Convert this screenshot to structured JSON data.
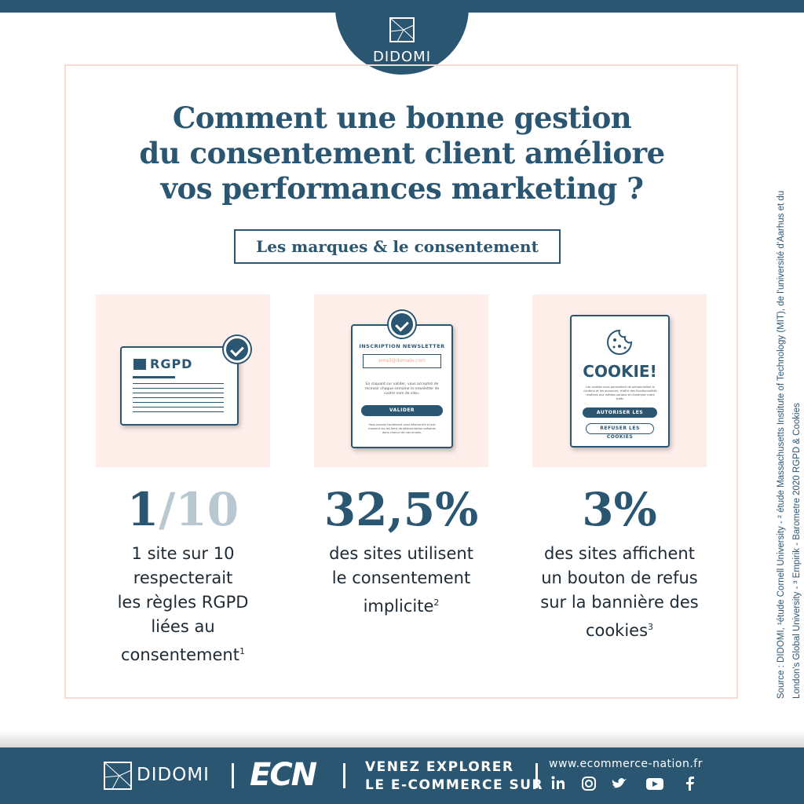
{
  "header": {
    "logo": "DIDOMI"
  },
  "title": [
    "Comment une bonne gestion",
    "du consentement client améliore",
    "vos performances marketing ?"
  ],
  "subtitle": "Les marques & le consentement",
  "cards": [
    {
      "illustration": {
        "label": "RGPD"
      },
      "stat": [
        "1",
        "/10"
      ],
      "description": [
        "1 site sur 10",
        "respecterait",
        "les règles RGPD",
        "liées au",
        "consentement"
      ],
      "note": "1"
    },
    {
      "illustration": {
        "heading": "INSCRIPTION NEWSLETTER",
        "placeholder": "email@domain.com",
        "text": "En cliquant sur valider, vous acceptez de recevoir chaque semaine la newsletter de «votre nom de site».",
        "button": "VALIDER",
        "footnote": "Vous pouvez facilement vous désinscrire à tout moment via les liens de désinscription présents dans chacun de nos emails."
      },
      "stat": [
        "32,5%"
      ],
      "description": [
        "des sites utilisent",
        "le consentement",
        "implicite"
      ],
      "note": "2"
    },
    {
      "illustration": {
        "heading": "COOKIE!",
        "text": "Les cookies nous permettent de personnaliser le contenu et les annonces, d'offrir des fonctionnalités relatives aux médias sociaux et d'analyser notre trafic.",
        "accept": "AUTORISER LES COOKIES",
        "refuse": "REFUSER LES COOKIES"
      },
      "stat": [
        "3%"
      ],
      "description": [
        "des sites affichent",
        "un bouton de refus",
        "sur la bannière des",
        "cookies"
      ],
      "note": "3"
    }
  ],
  "source": [
    "Source : DIDOMI, ¹étude Cornell University  -  ² étude Massachusetts Institute of Technology (MIT), de l'université d'Aarhus et du",
    "London's Global University  -  ³ Empirik - Barometre 2020 RGPD & Cookies"
  ],
  "footer": {
    "logo": "DIDOMI",
    "brand": "ECN",
    "tagline": [
      "VENEZ EXPLORER",
      "LE E-COMMERCE SUR"
    ],
    "url": "www.ecommerce-nation.fr"
  }
}
